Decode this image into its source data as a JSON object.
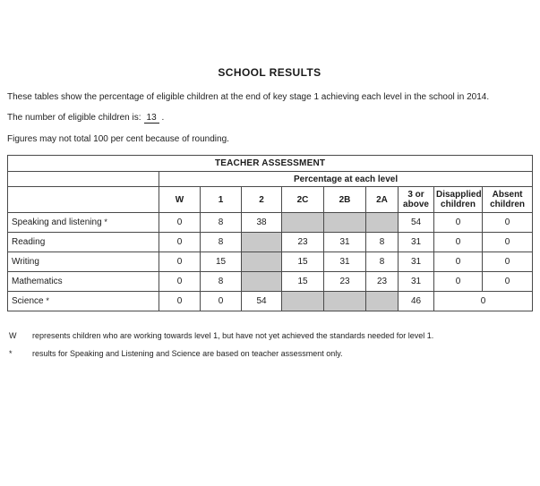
{
  "title": "SCHOOL RESULTS",
  "intro": {
    "line1": "These tables show the percentage of eligible children at the end of key stage 1 achieving each level in the school in 2014.",
    "eligible_prefix": "The number of eligible children is:",
    "eligible_count": "13",
    "eligible_suffix": ".",
    "rounding_note": "Figures may not total 100 per cent because of rounding."
  },
  "table": {
    "header": "TEACHER ASSESSMENT",
    "subheader": "Percentage at each level",
    "columns": [
      "W",
      "1",
      "2",
      "2C",
      "2B",
      "2A",
      "3 or above",
      "Disapplied children",
      "Absent children"
    ],
    "rows": [
      {
        "label": "Speaking and listening",
        "marker": "*",
        "cells": [
          {
            "v": "0"
          },
          {
            "v": "8"
          },
          {
            "v": "38"
          },
          {
            "shaded": true
          },
          {
            "shaded": true
          },
          {
            "shaded": true
          },
          {
            "v": "54"
          },
          {
            "v": "0"
          },
          {
            "v": "0"
          }
        ]
      },
      {
        "label": "Reading",
        "marker": "",
        "cells": [
          {
            "v": "0"
          },
          {
            "v": "8"
          },
          {
            "shaded": true
          },
          {
            "v": "23"
          },
          {
            "v": "31"
          },
          {
            "v": "8"
          },
          {
            "v": "31"
          },
          {
            "v": "0"
          },
          {
            "v": "0"
          }
        ]
      },
      {
        "label": "Writing",
        "marker": "",
        "cells": [
          {
            "v": "0"
          },
          {
            "v": "15"
          },
          {
            "shaded": true
          },
          {
            "v": "15"
          },
          {
            "v": "31"
          },
          {
            "v": "8"
          },
          {
            "v": "31"
          },
          {
            "v": "0"
          },
          {
            "v": "0"
          }
        ]
      },
      {
        "label": "Mathematics",
        "marker": "",
        "cells": [
          {
            "v": "0"
          },
          {
            "v": "8"
          },
          {
            "shaded": true
          },
          {
            "v": "15"
          },
          {
            "v": "23"
          },
          {
            "v": "23"
          },
          {
            "v": "31"
          },
          {
            "v": "0"
          },
          {
            "v": "0"
          }
        ]
      },
      {
        "label": "Science",
        "marker": "*",
        "cells": [
          {
            "v": "0"
          },
          {
            "v": "0"
          },
          {
            "v": "54"
          },
          {
            "shaded": true
          },
          {
            "shaded": true
          },
          {
            "shaded": true
          },
          {
            "v": "46"
          },
          {
            "v": "0",
            "colspan": 2
          }
        ]
      }
    ]
  },
  "footnotes": [
    {
      "symbol": "W",
      "text": "represents children who are working towards level 1, but have not yet achieved the standards needed for level 1."
    },
    {
      "symbol": "*",
      "text": "results for Speaking and Listening and Science are based on teacher assessment only."
    }
  ],
  "colors": {
    "shaded_cell": "#c9c9c9",
    "border": "#4a4a4a",
    "text": "#1f1f1f"
  }
}
